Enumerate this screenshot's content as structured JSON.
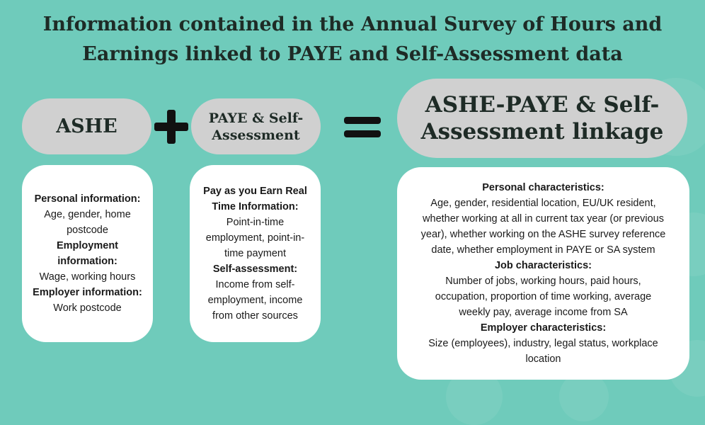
{
  "title": {
    "line1": "Information contained in the Annual Survey of Hours and",
    "line2": "Earnings linked to PAYE and Self-Assessment data"
  },
  "colors": {
    "background": "#6fcbbb",
    "pill": "#d0d0d0",
    "box": "#ffffff",
    "operator": "#111111"
  },
  "icons": [
    "plus-icon",
    "equals-icon"
  ],
  "ashe": {
    "label": "ASHE",
    "sections": [
      {
        "heading": "Personal information:",
        "text": "Age, gender, home postcode"
      },
      {
        "heading": "Employment information:",
        "text": "Wage, working hours"
      },
      {
        "heading": "Employer information:",
        "text": "Work postcode"
      }
    ]
  },
  "paye": {
    "label_line1": "PAYE & Self-",
    "label_line2": "Assessment",
    "sections": [
      {
        "heading": "Pay as you Earn Real Time Information:",
        "text": "Point-in-time employment, point-in-time payment"
      },
      {
        "heading": "Self-assessment:",
        "text": "Income from self-employment, income from other sources"
      }
    ]
  },
  "linkage": {
    "label_line1": "ASHE-PAYE & Self-",
    "label_line2": "Assessment linkage",
    "sections": [
      {
        "heading": "Personal characteristics:",
        "text": "Age, gender, residential location, EU/UK resident, whether working at all in current tax year (or previous year), whether working on the ASHE survey reference date, whether employment in PAYE or SA system"
      },
      {
        "heading": "Job characteristics:",
        "text": "Number of jobs, working hours, paid hours, occupation, proportion of time working, average weekly pay, average income from SA"
      },
      {
        "heading": "Employer characteristics:",
        "text": "Size (employees), industry, legal status, workplace location"
      }
    ]
  }
}
